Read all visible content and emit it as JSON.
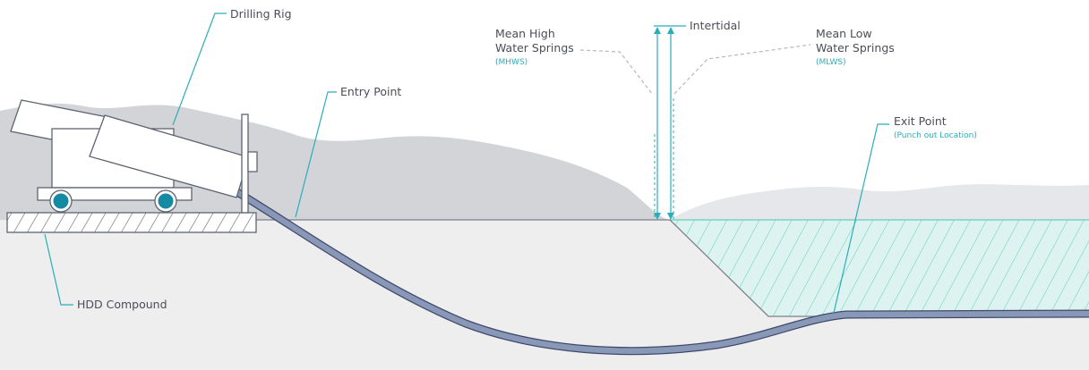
{
  "colors": {
    "teal": "#2aaeb9",
    "wheel": "#148aa5",
    "hills": "#d2d4d8",
    "ground": "#eeeeef",
    "water": "#dcf3f0",
    "water_hatch": "#62cdbe",
    "pipe": "#8a98b7",
    "pipe_edge": "#3f4a6b",
    "text": "#4b4e57",
    "leader_dashed": "#b4b8bf"
  },
  "labels": {
    "drilling_rig": "Drilling Rig",
    "entry_point": "Entry Point",
    "intertidal": "Intertidal",
    "mhws_line1": "Mean High",
    "mhws_line2": "Water Springs",
    "mhws_abbr": "(MHWS)",
    "mlws_line1": "Mean Low",
    "mlws_line2": "Water Springs",
    "mlws_abbr": "(MLWS)",
    "exit_point": "Exit Point",
    "exit_sub": "(Punch out Location)",
    "hdd_compound": "HDD Compound"
  }
}
